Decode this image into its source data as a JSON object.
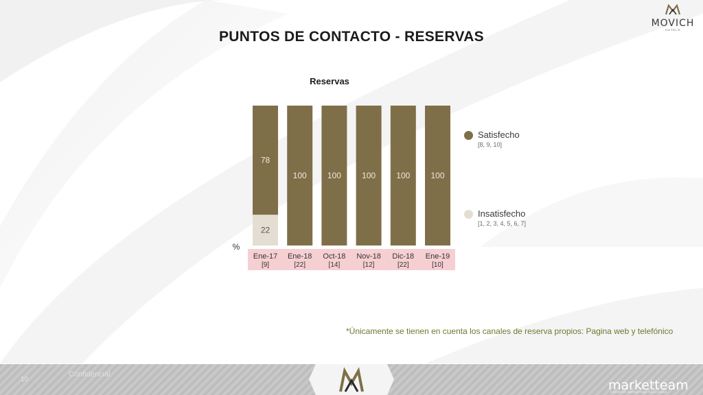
{
  "header": {
    "logo_text": "MOVICH",
    "logo_sub": "HOTELS",
    "title": "PUNTOS DE CONTACTO - RESERVAS"
  },
  "colors": {
    "satisfied": "#7f6f49",
    "unsatisfied": "#e4ddd2",
    "xlabel_bg": "#f6cfd2",
    "footnote": "#6b7a2e"
  },
  "chart_data": {
    "type": "bar",
    "stacked": true,
    "title": "Reservas",
    "unit_label": "%",
    "ylim": [
      0,
      100
    ],
    "categories": [
      "Ene-17",
      "Ene-18",
      "Oct-18",
      "Nov-18",
      "Dic-18",
      "Ene-19"
    ],
    "bases": [
      "[9]",
      "[22]",
      "[14]",
      "[12]",
      "[22]",
      "[10]"
    ],
    "series": [
      {
        "name": "Satisfecho",
        "values": [
          78,
          100,
          100,
          100,
          100,
          100
        ]
      },
      {
        "name": "Insatisfecho",
        "values": [
          22,
          0,
          0,
          0,
          0,
          0
        ]
      }
    ],
    "legend": [
      {
        "label": "Satisfecho",
        "sub": "[8, 9, 10]"
      },
      {
        "label": "Insatisfecho",
        "sub": "[1, 2, 3, 4, 5, 6, 7]"
      }
    ],
    "legend_position": "right",
    "grid": false
  },
  "footnote": "*Únicamente se tienen en cuenta los canales de reserva propios: Pagina web y telefónico",
  "footer": {
    "page_number": "10",
    "confidential": "Confidencial",
    "brand": "marketteam",
    "brand_sub": "CREATIVE MARKETING SOLUTIONS"
  }
}
